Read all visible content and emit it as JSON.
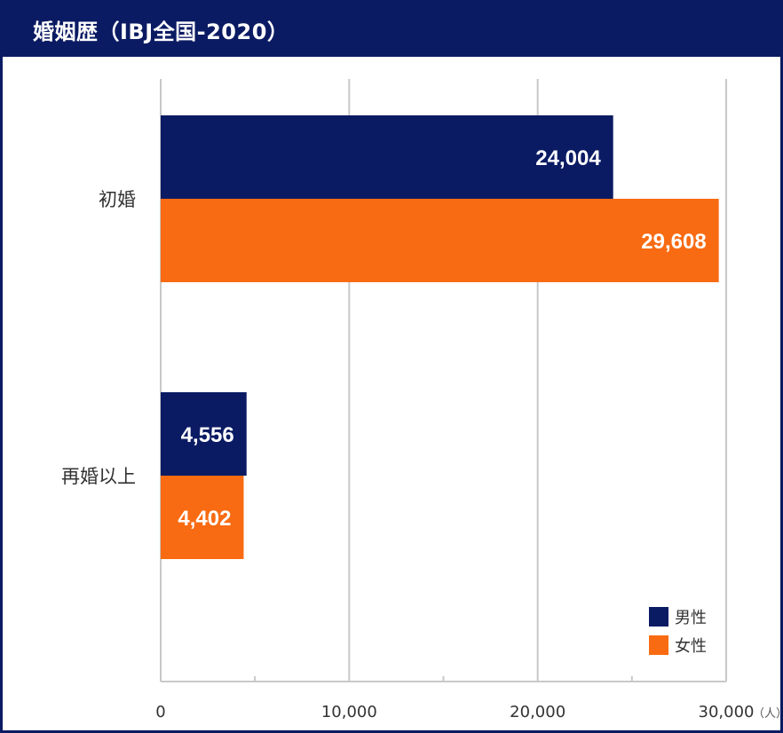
{
  "title": "婚姻歴（IBJ全国-2020）",
  "chart_data": {
    "type": "bar",
    "orientation": "horizontal",
    "title": "婚姻歴（IBJ全国-2020）",
    "categories": [
      "初婚",
      "再婚以上"
    ],
    "series": [
      {
        "name": "男性",
        "values": [
          24004,
          4556
        ],
        "labels": [
          "24,004",
          "4,556"
        ],
        "color": "#0b1b63"
      },
      {
        "name": "女性",
        "values": [
          29608,
          4402
        ],
        "labels": [
          "29,608",
          "4,402"
        ],
        "color": "#f86b12"
      }
    ],
    "x_ticks": [
      "0",
      "10,000",
      "20,000",
      "30,000"
    ],
    "x_unit": "（人）",
    "xlim": [
      0,
      30000
    ],
    "grid": true,
    "legend_position": "bottom-right"
  }
}
